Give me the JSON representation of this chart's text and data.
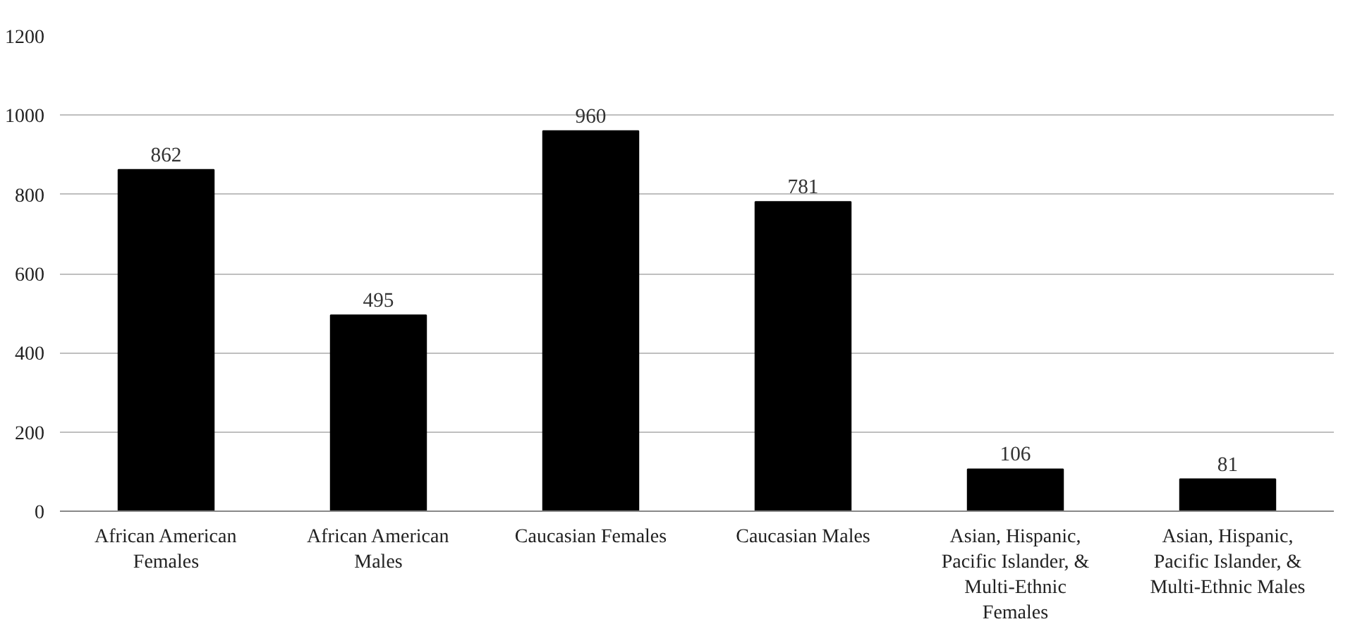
{
  "chart_data": {
    "type": "bar",
    "categories": [
      "African American Females",
      "African American Males",
      "Caucasian Females",
      "Caucasian Males",
      "Asian, Hispanic, Pacific Islander, & Multi-Ethnic Females",
      "Asian, Hispanic, Pacific Islander, & Multi-Ethnic Males"
    ],
    "values": [
      862,
      495,
      960,
      781,
      106,
      81
    ],
    "color": "#000000",
    "ylim": [
      0,
      1200
    ],
    "yticks": [
      0,
      200,
      400,
      600,
      800,
      1000,
      1200
    ],
    "grid": "y",
    "data_labels": true
  }
}
